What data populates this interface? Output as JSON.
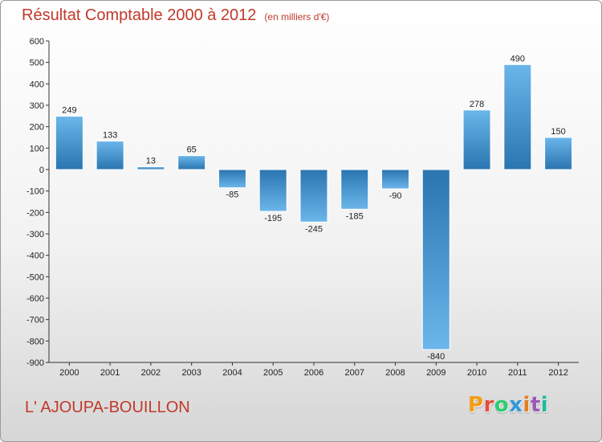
{
  "header": {
    "title": "Résultat Comptable 2000 à 2012",
    "subtitle": "(en milliers d'€)"
  },
  "footer": {
    "city": "L' AJOUPA-BOUILLON",
    "logo_text": "Proxiti",
    "logo_colors": [
      "#f39c12",
      "#e74c3c",
      "#2ecc71",
      "#3498db",
      "#e67e22",
      "#9b59b6",
      "#1abc9c"
    ]
  },
  "chart_data": {
    "type": "bar",
    "title": "Résultat Comptable 2000 à 2012",
    "subtitle": "(en milliers d'€)",
    "categories": [
      "2000",
      "2001",
      "2002",
      "2003",
      "2004",
      "2005",
      "2006",
      "2007",
      "2008",
      "2009",
      "2010",
      "2011",
      "2012"
    ],
    "values": [
      249,
      133,
      13,
      65,
      -85,
      -195,
      -245,
      -185,
      -90,
      -840,
      278,
      490,
      150
    ],
    "data_labels": [
      "249",
      "133",
      "13",
      "65",
      "-85",
      "-195",
      "-245",
      "-185",
      "-90",
      "-840",
      "278",
      "490",
      "150"
    ],
    "y_ticks": [
      600,
      500,
      400,
      300,
      200,
      100,
      0,
      -100,
      -200,
      -300,
      -400,
      -500,
      -600,
      -700,
      -800,
      -900
    ],
    "ylim": [
      -900,
      600
    ],
    "xlabel": "",
    "ylabel": "",
    "grid": false,
    "colors": {
      "bar_dark": "#2a75b0",
      "bar_light": "#6bb6ea"
    }
  }
}
